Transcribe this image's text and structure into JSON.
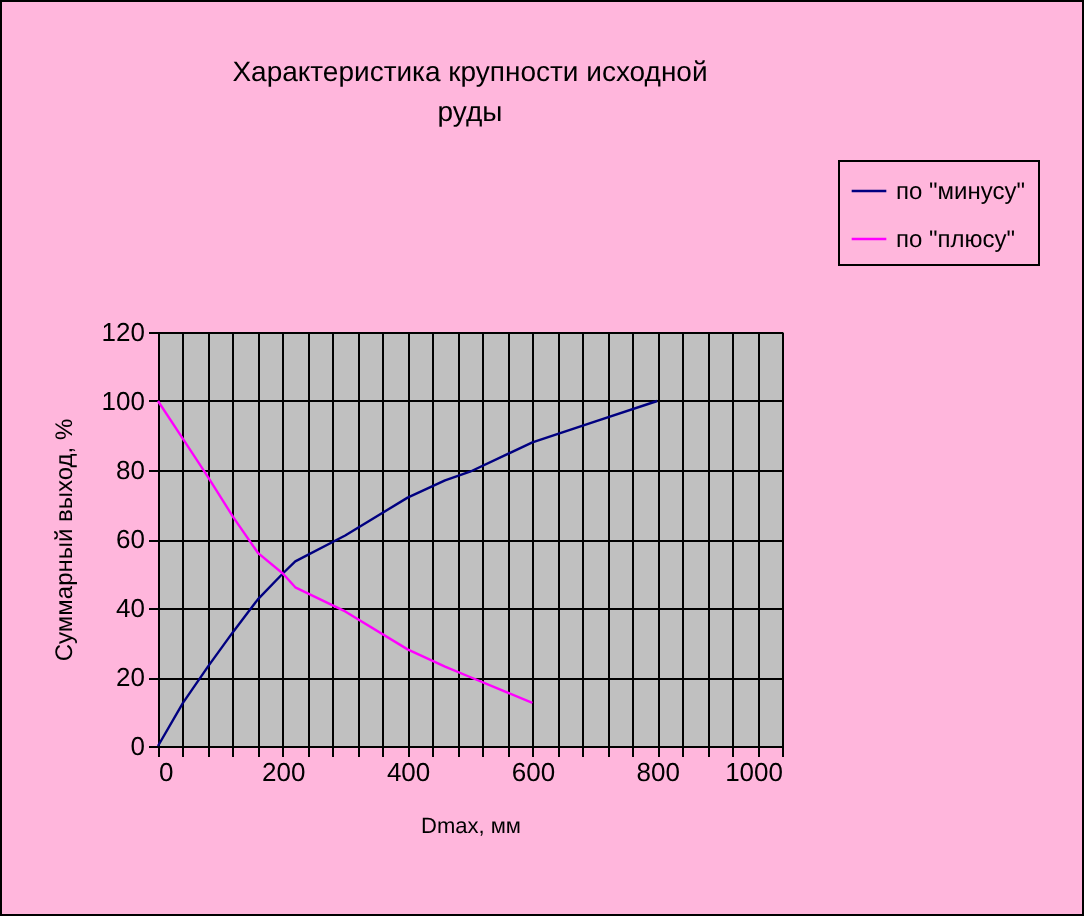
{
  "chart_data": {
    "type": "line",
    "title": [
      "Характеристика крупности исходной",
      "руды"
    ],
    "xlabel": "Dmax, мм",
    "ylabel": "Суммарный выход, %",
    "series": [
      {
        "name": "по \"минусу\"",
        "color": "#000080",
        "x": [
          0,
          40,
          80,
          120,
          160,
          200,
          220,
          300,
          400,
          460,
          500,
          600,
          700,
          800
        ],
        "values": [
          0,
          12.5,
          23,
          33,
          42.5,
          50,
          53.5,
          61,
          72,
          77,
          79.5,
          88,
          94,
          100
        ]
      },
      {
        "name": "по \"плюсу\"",
        "color": "#ff00ff",
        "x": [
          0,
          40,
          80,
          120,
          160,
          200,
          220,
          300,
          400,
          460,
          500,
          600
        ],
        "values": [
          100,
          89,
          78,
          66.5,
          56,
          50,
          46,
          39,
          28,
          23,
          20,
          12.5
        ]
      }
    ],
    "xlim": [
      0,
      1000
    ],
    "ylim": [
      0,
      120
    ],
    "xticks": [
      0,
      {
        "value": 40,
        "label": null
      },
      {
        "value": 80,
        "label": null
      },
      {
        "value": 120,
        "label": null
      },
      {
        "value": 160,
        "label": null
      },
      200,
      {
        "value": 240,
        "label": null
      },
      {
        "value": 280,
        "label": null
      },
      {
        "value": 320,
        "label": null
      },
      {
        "value": 360,
        "label": null
      },
      400,
      {
        "value": 440,
        "label": null
      },
      {
        "value": 480,
        "label": null
      },
      {
        "value": 520,
        "label": null
      },
      {
        "value": 560,
        "label": null
      },
      600,
      {
        "value": 640,
        "label": null
      },
      {
        "value": 680,
        "label": null
      },
      {
        "value": 720,
        "label": null
      },
      {
        "value": 760,
        "label": null
      },
      800,
      {
        "value": 840,
        "label": null
      },
      {
        "value": 880,
        "label": null
      },
      {
        "value": 920,
        "label": null
      },
      {
        "value": 960,
        "label": null
      },
      1000
    ],
    "yticks": [
      0,
      20,
      40,
      60,
      80,
      100,
      120
    ],
    "grid": true,
    "legend": "top right",
    "marker": "none",
    "line_style": "solid"
  }
}
